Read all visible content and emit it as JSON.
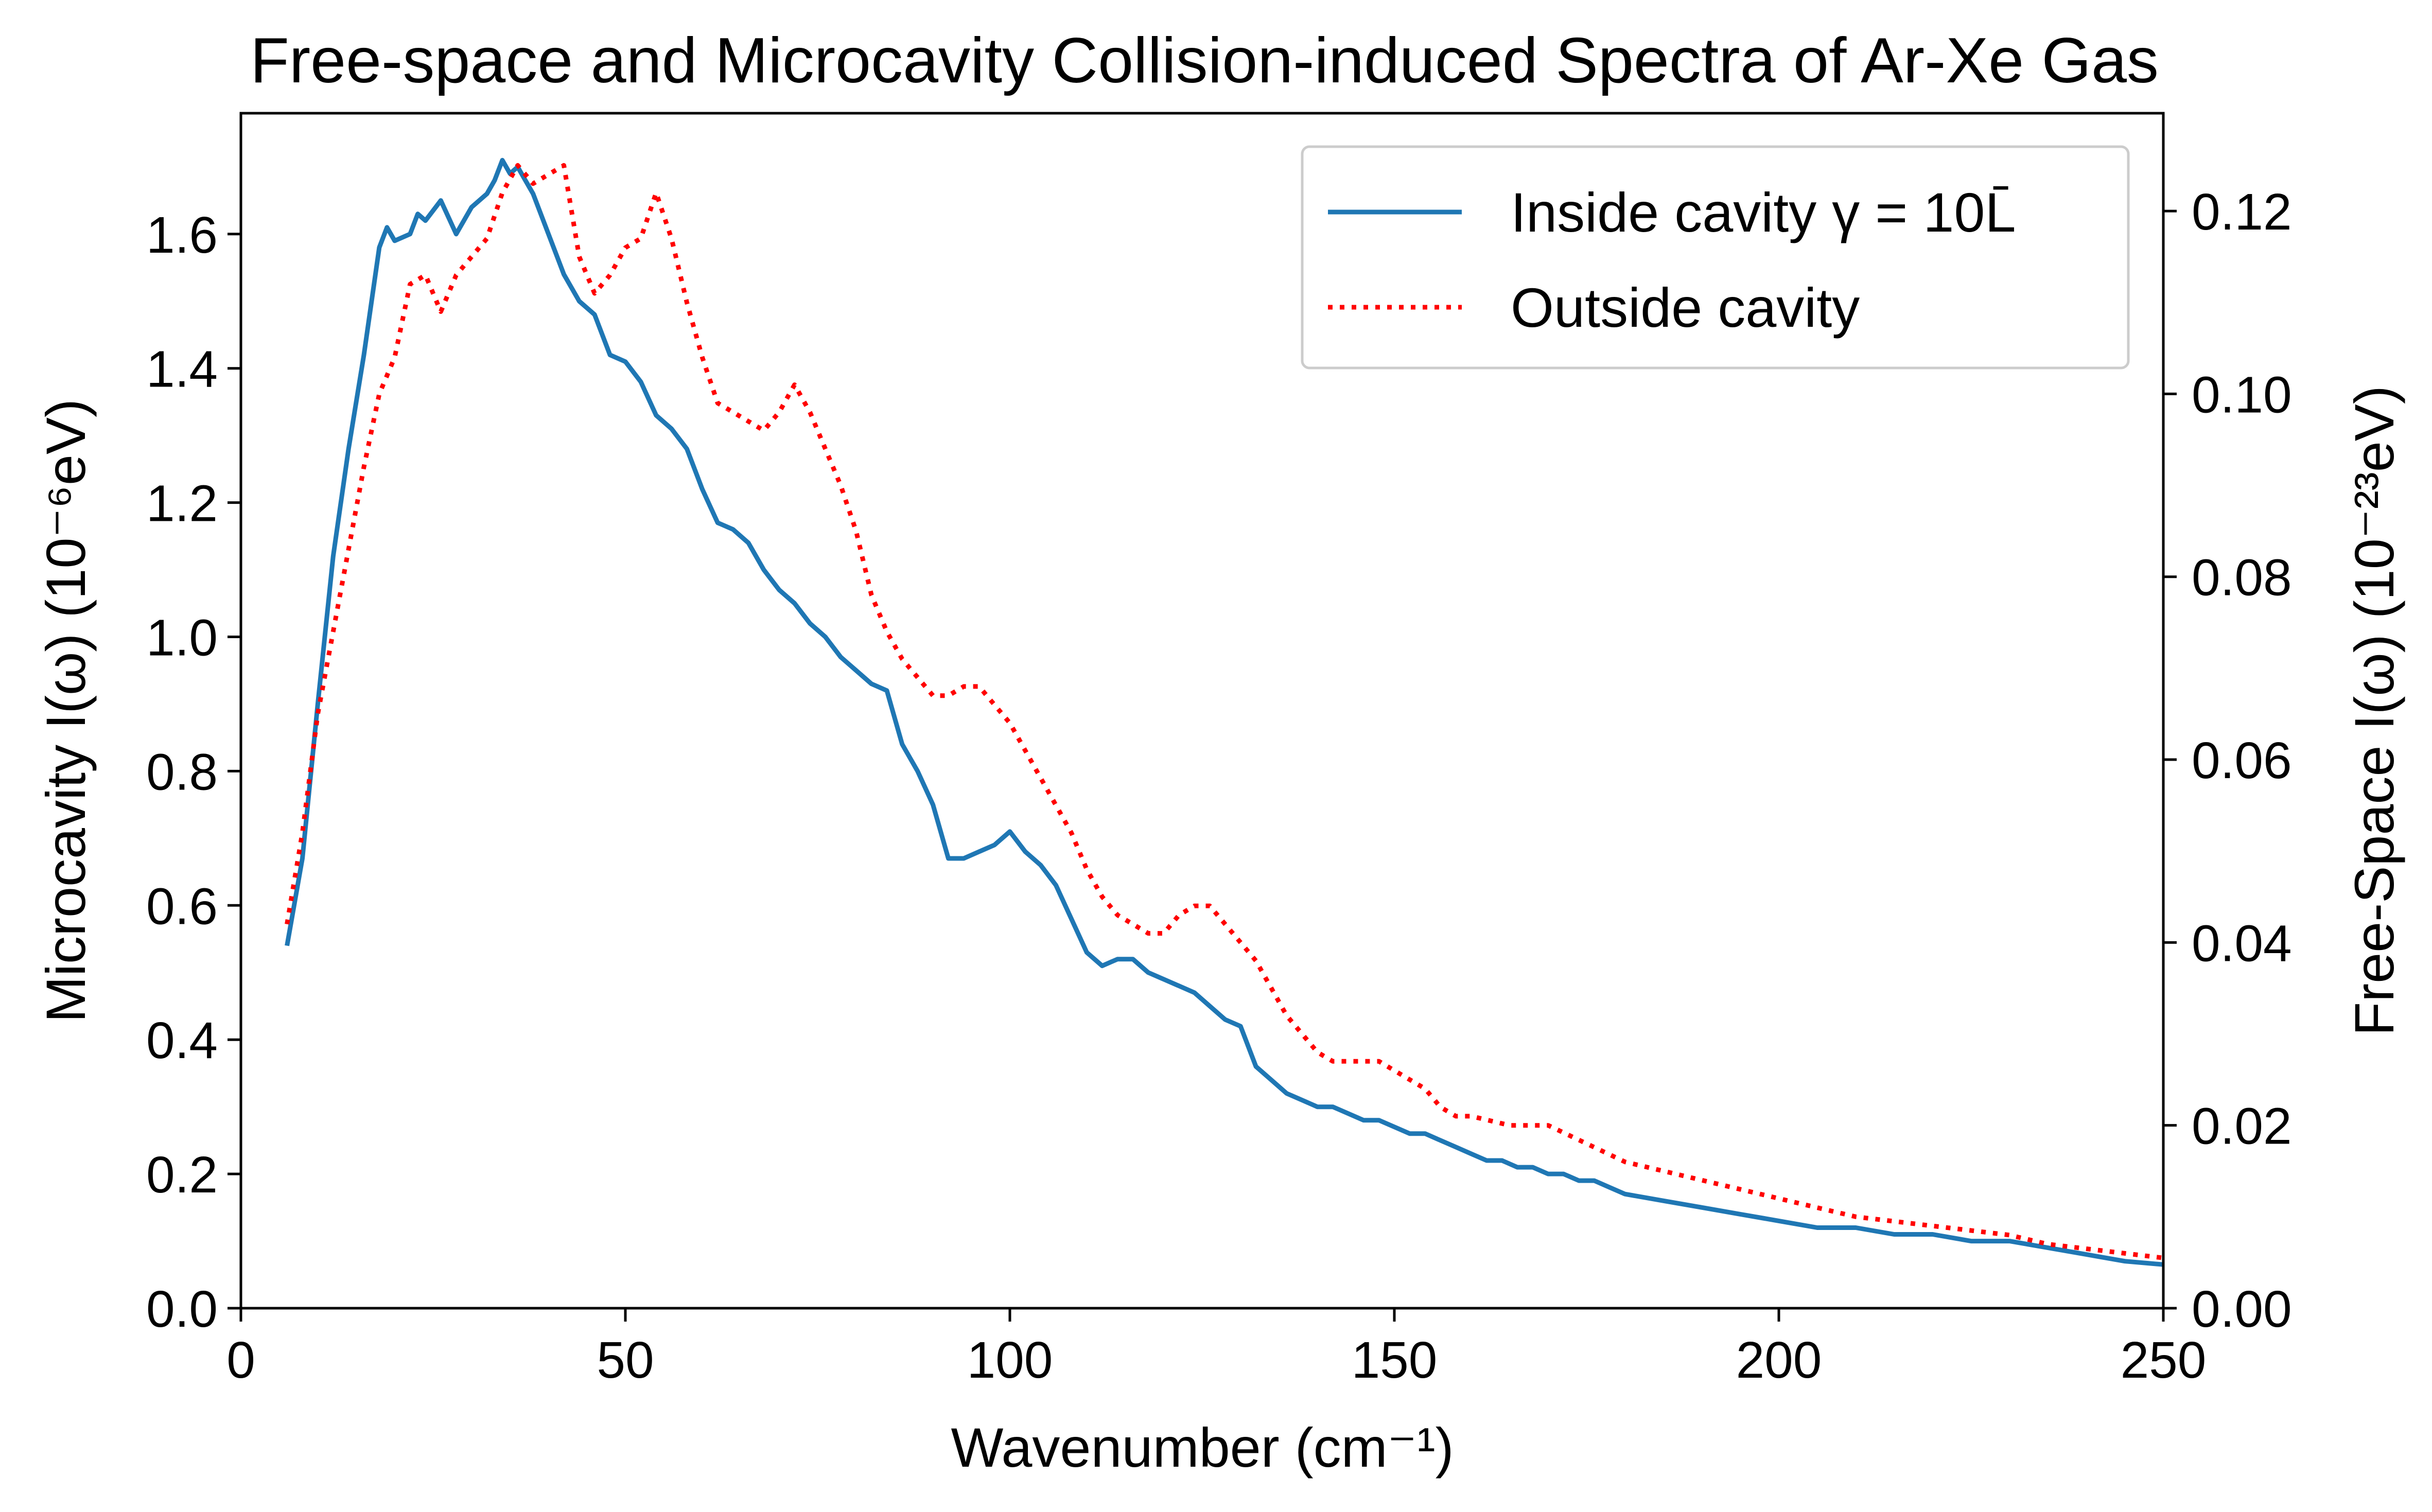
{
  "chart_data": {
    "type": "line",
    "title": "Free-space and Microcavity Collision-induced Spectra of Ar-Xe Gas",
    "xlabel": "Wavenumber (cm⁻¹)",
    "ylabel_left": "Microcavity I(ω) (10⁻⁶eV)",
    "ylabel_right": "Free-Space I(ω) (10⁻²³eV)",
    "xlim": [
      0,
      250
    ],
    "ylim_left": [
      0,
      1.78
    ],
    "ylim_right": [
      0,
      0.1307
    ],
    "xticks": [
      0,
      50,
      100,
      150,
      200,
      250
    ],
    "xtick_labels": [
      "0",
      "50",
      "100",
      "150",
      "200",
      "250"
    ],
    "yticks_left": [
      0.0,
      0.2,
      0.4,
      0.6,
      0.8,
      1.0,
      1.2,
      1.4,
      1.6
    ],
    "ytick_labels_left": [
      "0.0",
      "0.2",
      "0.4",
      "0.6",
      "0.8",
      "1.0",
      "1.2",
      "1.4",
      "1.6"
    ],
    "yticks_right": [
      0.0,
      0.02,
      0.04,
      0.06,
      0.08,
      0.1,
      0.12
    ],
    "ytick_labels_right": [
      "0.00",
      "0.02",
      "0.04",
      "0.06",
      "0.08",
      "0.10",
      "0.12"
    ],
    "grid": false,
    "legend_position": "top-right",
    "series": [
      {
        "name": "Inside cavity γ = 10L̄",
        "axis": "left",
        "color": "#1f77b4",
        "style": "solid",
        "x": [
          6,
          8,
          10,
          12,
          14,
          16,
          18,
          19,
          20,
          22,
          23,
          24,
          26,
          28,
          30,
          32,
          33,
          34,
          35,
          36,
          38,
          40,
          42,
          44,
          46,
          48,
          50,
          52,
          54,
          56,
          58,
          60,
          62,
          64,
          66,
          68,
          70,
          72,
          74,
          76,
          78,
          80,
          82,
          84,
          86,
          88,
          90,
          92,
          94,
          96,
          98,
          100,
          102,
          104,
          106,
          108,
          110,
          112,
          114,
          116,
          118,
          120,
          122,
          124,
          126,
          128,
          130,
          132,
          134,
          136,
          138,
          140,
          142,
          144,
          146,
          148,
          150,
          152,
          154,
          156,
          158,
          160,
          162,
          164,
          166,
          168,
          170,
          172,
          174,
          176,
          178,
          180,
          185,
          190,
          195,
          200,
          205,
          210,
          215,
          220,
          225,
          230,
          235,
          240,
          245,
          250
        ],
        "y": [
          0.54,
          0.67,
          0.9,
          1.12,
          1.28,
          1.42,
          1.58,
          1.61,
          1.59,
          1.6,
          1.63,
          1.62,
          1.65,
          1.6,
          1.64,
          1.66,
          1.68,
          1.71,
          1.69,
          1.7,
          1.66,
          1.6,
          1.54,
          1.5,
          1.48,
          1.42,
          1.41,
          1.38,
          1.33,
          1.31,
          1.28,
          1.22,
          1.17,
          1.16,
          1.14,
          1.1,
          1.07,
          1.05,
          1.02,
          1.0,
          0.97,
          0.95,
          0.93,
          0.92,
          0.84,
          0.8,
          0.75,
          0.67,
          0.67,
          0.68,
          0.69,
          0.71,
          0.68,
          0.66,
          0.63,
          0.58,
          0.53,
          0.51,
          0.52,
          0.52,
          0.5,
          0.49,
          0.48,
          0.47,
          0.45,
          0.43,
          0.42,
          0.36,
          0.34,
          0.32,
          0.31,
          0.3,
          0.3,
          0.29,
          0.28,
          0.28,
          0.27,
          0.26,
          0.26,
          0.25,
          0.24,
          0.23,
          0.22,
          0.22,
          0.21,
          0.21,
          0.2,
          0.2,
          0.19,
          0.19,
          0.18,
          0.17,
          0.16,
          0.15,
          0.14,
          0.13,
          0.12,
          0.12,
          0.11,
          0.11,
          0.1,
          0.1,
          0.09,
          0.08,
          0.07,
          0.065
        ]
      },
      {
        "name": "Outside cavity",
        "axis": "right",
        "color": "#ff0000",
        "style": "dotted",
        "x": [
          6,
          8,
          10,
          12,
          14,
          16,
          18,
          20,
          22,
          24,
          26,
          28,
          30,
          32,
          34,
          36,
          38,
          40,
          42,
          44,
          46,
          48,
          50,
          52,
          54,
          56,
          58,
          60,
          62,
          64,
          66,
          68,
          70,
          72,
          74,
          76,
          78,
          80,
          82,
          84,
          86,
          88,
          90,
          92,
          94,
          96,
          98,
          100,
          102,
          104,
          106,
          108,
          110,
          112,
          114,
          116,
          118,
          120,
          122,
          124,
          126,
          128,
          130,
          132,
          134,
          136,
          138,
          140,
          142,
          144,
          146,
          148,
          150,
          152,
          154,
          156,
          158,
          160,
          165,
          170,
          175,
          180,
          185,
          190,
          195,
          200,
          205,
          210,
          215,
          220,
          225,
          230,
          235,
          240,
          245,
          250
        ],
        "y": [
          0.042,
          0.052,
          0.065,
          0.074,
          0.083,
          0.092,
          0.1,
          0.104,
          0.112,
          0.113,
          0.109,
          0.113,
          0.115,
          0.117,
          0.122,
          0.125,
          0.123,
          0.124,
          0.125,
          0.115,
          0.111,
          0.113,
          0.116,
          0.117,
          0.122,
          0.117,
          0.11,
          0.104,
          0.099,
          0.098,
          0.097,
          0.096,
          0.098,
          0.101,
          0.098,
          0.094,
          0.09,
          0.085,
          0.078,
          0.074,
          0.071,
          0.069,
          0.067,
          0.067,
          0.068,
          0.068,
          0.066,
          0.064,
          0.061,
          0.058,
          0.055,
          0.052,
          0.048,
          0.045,
          0.043,
          0.042,
          0.041,
          0.041,
          0.043,
          0.044,
          0.044,
          0.042,
          0.04,
          0.038,
          0.035,
          0.032,
          0.03,
          0.028,
          0.027,
          0.027,
          0.027,
          0.027,
          0.026,
          0.025,
          0.024,
          0.022,
          0.021,
          0.021,
          0.02,
          0.02,
          0.018,
          0.016,
          0.015,
          0.014,
          0.013,
          0.012,
          0.011,
          0.01,
          0.0095,
          0.009,
          0.0085,
          0.008,
          0.007,
          0.0065,
          0.006,
          0.0055
        ]
      }
    ]
  }
}
